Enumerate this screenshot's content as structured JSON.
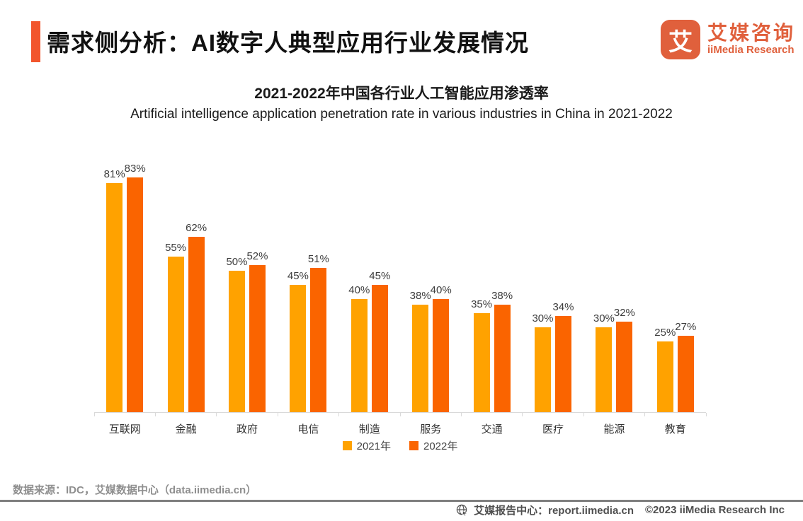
{
  "header": {
    "title": "需求侧分析：AI数字人典型应用行业发展情况",
    "logo": {
      "mark_glyph": "艾",
      "name_cn": "艾媒咨询",
      "name_en": "iiMedia Research"
    }
  },
  "chart_data": {
    "type": "bar",
    "title": "2021-2022年中国各行业人工智能应用渗透率",
    "subtitle": "Artificial intelligence application penetration rate in various industries in China in 2021-2022",
    "categories": [
      "互联网",
      "金融",
      "政府",
      "电信",
      "制造",
      "服务",
      "交通",
      "医疗",
      "能源",
      "教育"
    ],
    "series": [
      {
        "name": "2021年",
        "color": "#FFA200",
        "values": [
          81,
          55,
          50,
          45,
          40,
          38,
          35,
          30,
          30,
          25
        ]
      },
      {
        "name": "2022年",
        "color": "#FA6400",
        "values": [
          83,
          62,
          52,
          51,
          45,
          40,
          38,
          34,
          32,
          27
        ]
      }
    ],
    "value_suffix": "%",
    "ylim": [
      0,
      100
    ],
    "grid": false,
    "legend_position": "bottom",
    "data_labels": true
  },
  "footer": {
    "source": "数据来源：IDC，艾媒数据中心（data.iimedia.cn）",
    "bottom_bar": {
      "site_text": "艾媒报告中心：report.iimedia.cn",
      "copyright": "©2023  iiMedia Research  Inc"
    }
  },
  "colors": {
    "accent_bar": "#F2552C",
    "logo": "#E0603C",
    "bar_2021": "#FFA200",
    "bar_2022": "#FA6400",
    "axis": "#D9D9D9",
    "divider": "#7F7F7F",
    "source_text": "#8F8F8F",
    "bottom_text": "#4F4F4F"
  }
}
